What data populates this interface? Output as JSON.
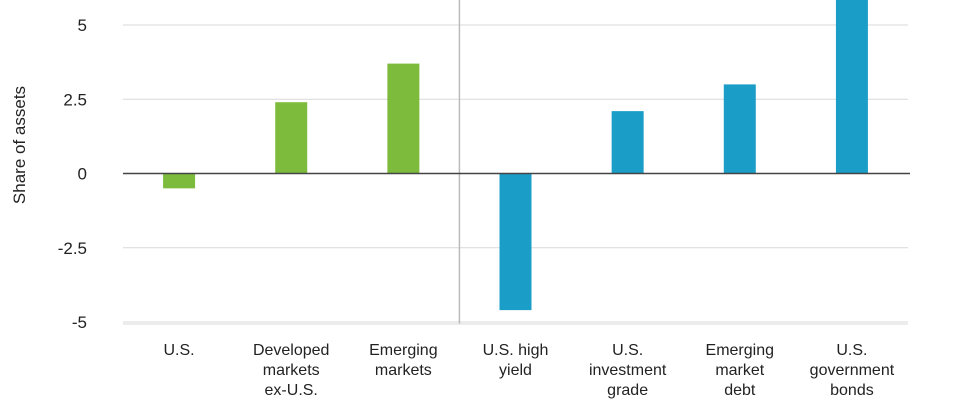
{
  "chart_data": {
    "type": "bar",
    "ylabel": "Share of assets",
    "ylim": [
      -5,
      6
    ],
    "yticks": [
      5,
      2.5,
      0,
      -2.5,
      -5
    ],
    "ytick_labels": [
      "5",
      "2.5",
      "0",
      "-2.5",
      "-5"
    ],
    "grid": true,
    "categories": [
      [
        "U.S."
      ],
      [
        "Developed",
        "markets",
        "ex-U.S."
      ],
      [
        "Emerging",
        "markets"
      ],
      [
        "U.S. high",
        "yield"
      ],
      [
        "U.S.",
        "investment",
        "grade"
      ],
      [
        "Emerging",
        "market",
        "debt"
      ],
      [
        "U.S.",
        "government",
        "bonds"
      ]
    ],
    "values": [
      -0.5,
      2.4,
      3.7,
      -4.6,
      2.1,
      3.0,
      6.2
    ],
    "groups": [
      {
        "color": "#7dbb3c",
        "indices": [
          0,
          1,
          2
        ]
      },
      {
        "color": "#1a9dc7",
        "indices": [
          3,
          4,
          5,
          6
        ]
      }
    ],
    "zero_line_color": "#444444",
    "grid_color": "#d9d9d9",
    "divider_color": "#bbbbbb"
  }
}
